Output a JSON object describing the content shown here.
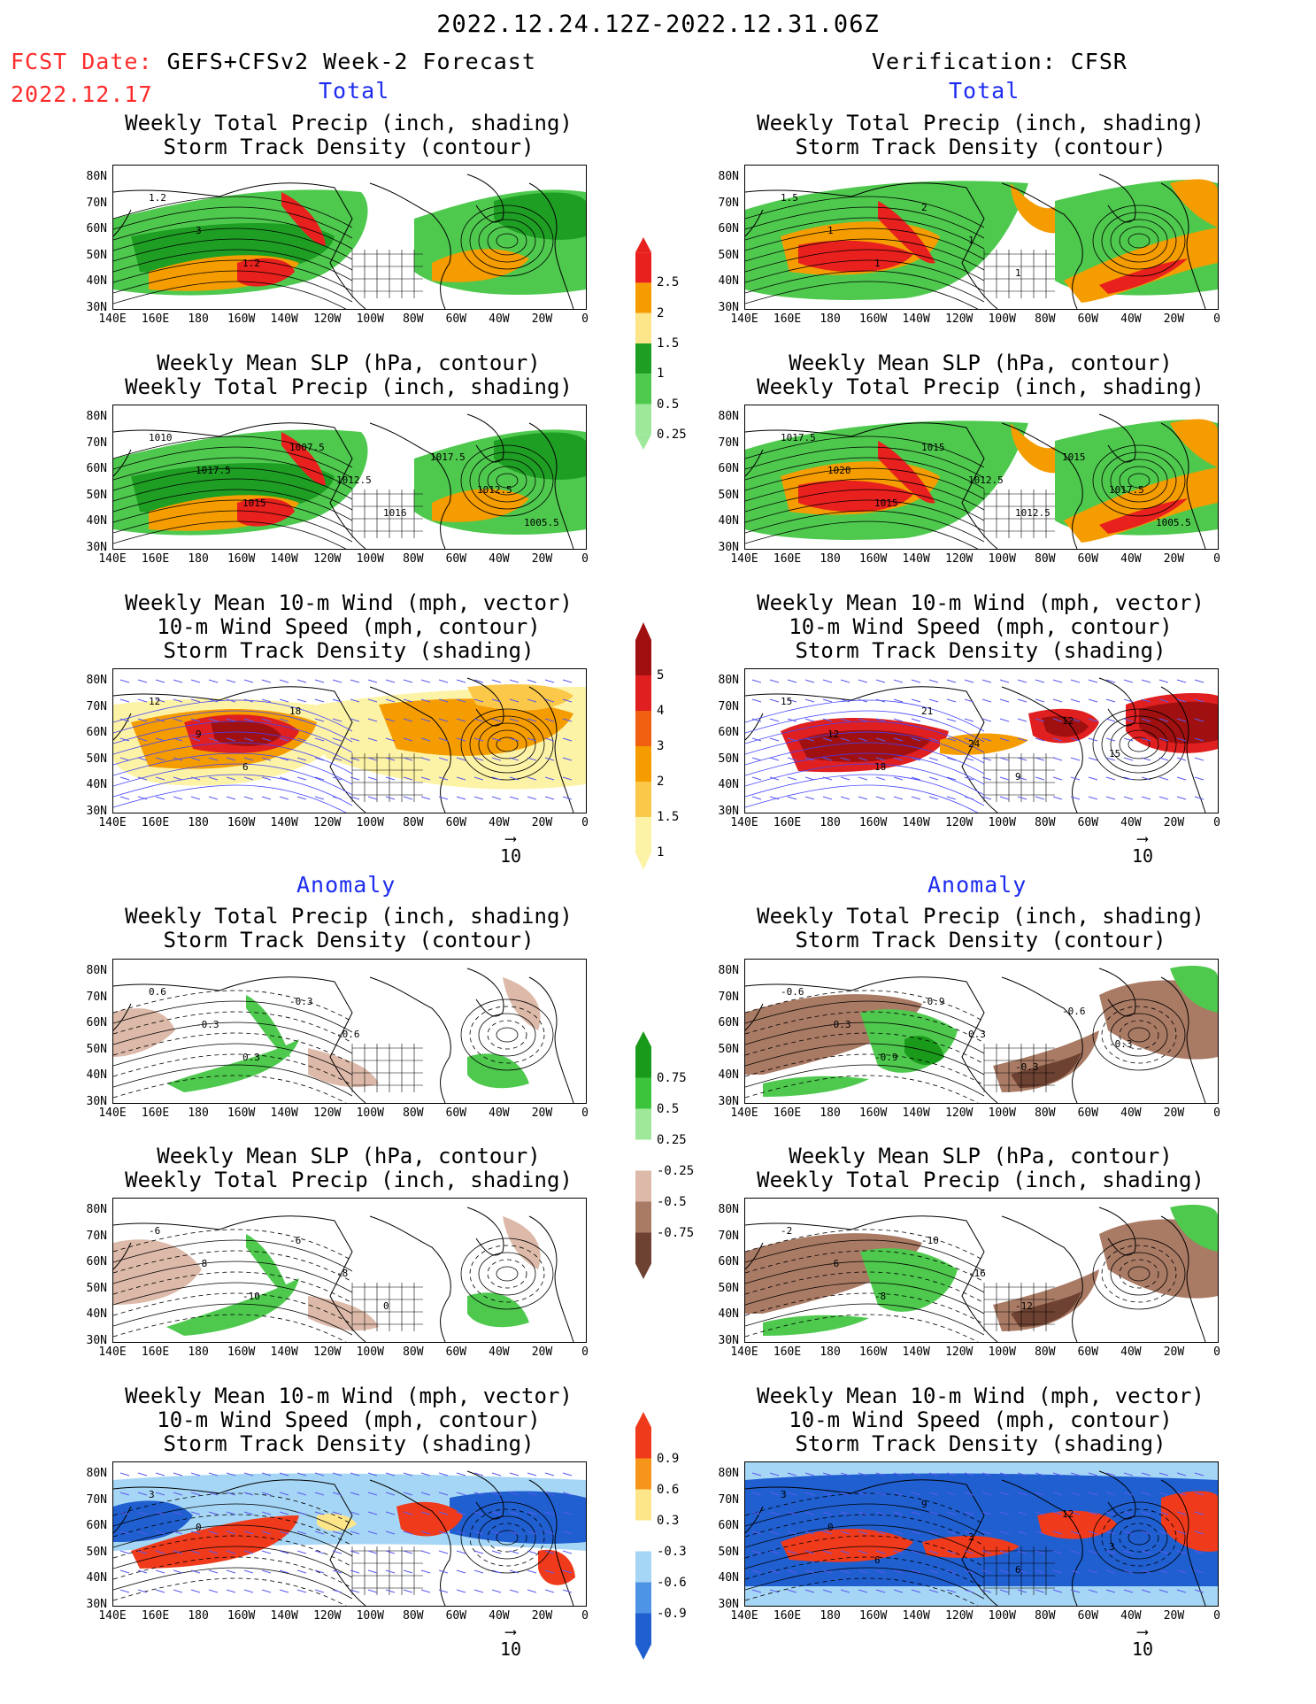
{
  "header": {
    "period": "2022.12.24.12Z-2022.12.31.06Z",
    "fcst_label": "FCST Date:",
    "fcst_name": "GEFS+CFSv2 Week-2 Forecast",
    "fcst_date": "2022.12.17",
    "verification": "Verification: CFSR",
    "total": "Total",
    "anomaly": "Anomaly"
  },
  "titles": {
    "precip_storm": [
      "Weekly Total Precip (inch, shading)",
      "Storm Track Density (contour)"
    ],
    "slp_precip": [
      "Weekly Mean SLP (hPa, contour)",
      "Weekly Total Precip (inch, shading)"
    ],
    "wind": [
      "Weekly Mean 10-m Wind (mph, vector)",
      "10-m Wind Speed (mph, contour)",
      "Storm Track Density (shading)"
    ]
  },
  "axes": {
    "lat": [
      "80N",
      "70N",
      "60N",
      "50N",
      "40N",
      "30N"
    ],
    "lon": [
      "140E",
      "160E",
      "180",
      "160W",
      "140W",
      "120W",
      "100W",
      "80W",
      "60W",
      "40W",
      "20W",
      "0"
    ]
  },
  "vector_scale": "10",
  "colorbars": {
    "precip_total": {
      "labels": [
        "2.5",
        "2",
        "1.5",
        "1",
        "0.5",
        "0.25"
      ],
      "colors": [
        "#e8201e",
        "#f59c00",
        "#fde58a",
        "#1f9e24",
        "#4ec94e",
        "#9ee89a"
      ]
    },
    "storm_total": {
      "labels": [
        "5",
        "4",
        "3",
        "2",
        "1.5",
        "1"
      ],
      "colors": [
        "#a01010",
        "#e02020",
        "#f06010",
        "#f59c00",
        "#fbc84a",
        "#fdf3a6"
      ]
    },
    "precip_anom": {
      "labels": [
        "0.75",
        "0.5",
        "0.25",
        "-0.25",
        "-0.5",
        "-0.75"
      ],
      "colors": [
        "#1a9a1a",
        "#3dc43d",
        "#9fe89a",
        "#ffffff",
        "#dcb9a8",
        "#a97a64",
        "#6e4232"
      ]
    },
    "storm_anom": {
      "labels": [
        "0.9",
        "0.6",
        "0.3",
        "-0.3",
        "-0.6",
        "-0.9"
      ],
      "colors": [
        "#f03a1c",
        "#f7951b",
        "#fde58a",
        "#ffffff",
        "#a6d6f5",
        "#4d94e6",
        "#1f5fd0"
      ]
    }
  },
  "contour_labels": {
    "fcst_total_precip": [
      "1.2",
      "3",
      "1.2"
    ],
    "fcst_total_slp": [
      "1010",
      "1017.5",
      "1015",
      "1007.5",
      "1012.5",
      "1016",
      "1017.5",
      "1012.5",
      "1005.5"
    ],
    "fcst_total_wind": [
      "12",
      "9",
      "6",
      "18"
    ],
    "obs_total_precip": [
      "1.5",
      "1",
      "1",
      "2",
      "1",
      "1"
    ],
    "obs_total_slp": [
      "1017.5",
      "1020",
      "1015",
      "1015",
      "1012.5",
      "1012.5",
      "1015",
      "1017.5",
      "1005.5"
    ],
    "obs_total_wind": [
      "15",
      "12",
      "18",
      "21",
      "24",
      "9",
      "12",
      "15"
    ],
    "fcst_anom_precip": [
      "0.6",
      "-0.3",
      "0.3",
      "-0.3",
      "-0.6"
    ],
    "fcst_anom_slp": [
      "-6",
      "-8",
      "-10",
      "-6",
      "-8",
      "0"
    ],
    "fcst_anom_wind": [
      "3",
      "0"
    ],
    "obs_anom_precip": [
      "-0.6",
      "-0.3",
      "-0.9",
      "-0.9",
      "0.3",
      "-0.3",
      "-0.6",
      "-0.3"
    ],
    "obs_anom_slp": [
      "-2",
      "-6",
      "-8",
      "-10",
      "-16",
      "-12"
    ],
    "obs_anom_wind": [
      "3",
      "0",
      "6",
      "9",
      "3",
      "6",
      "12",
      "3"
    ]
  }
}
